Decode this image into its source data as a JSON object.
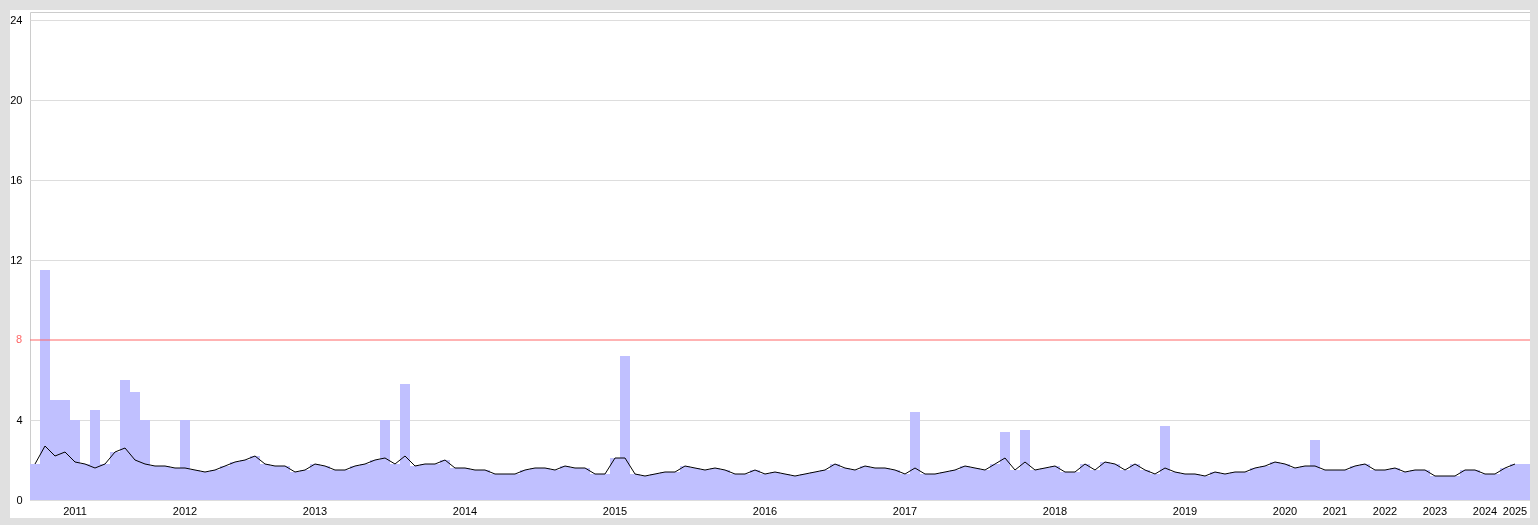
{
  "chart_data": {
    "type": "bar",
    "categories": [
      null,
      null,
      null,
      null,
      "2011",
      null,
      null,
      null,
      null,
      null,
      null,
      null,
      null,
      null,
      null,
      "2012",
      null,
      null,
      null,
      null,
      null,
      null,
      null,
      null,
      null,
      null,
      null,
      null,
      "2013",
      null,
      null,
      null,
      null,
      null,
      null,
      null,
      null,
      null,
      null,
      null,
      null,
      null,
      null,
      "2014",
      null,
      null,
      null,
      null,
      null,
      null,
      null,
      null,
      null,
      null,
      null,
      null,
      null,
      null,
      "2015",
      null,
      null,
      null,
      null,
      null,
      null,
      null,
      null,
      null,
      null,
      null,
      null,
      null,
      null,
      "2016",
      null,
      null,
      null,
      null,
      null,
      null,
      null,
      null,
      null,
      null,
      null,
      null,
      null,
      "2017",
      null,
      null,
      null,
      null,
      null,
      null,
      null,
      null,
      null,
      null,
      null,
      null,
      null,
      null,
      "2018",
      null,
      null,
      null,
      null,
      null,
      null,
      null,
      null,
      null,
      null,
      null,
      null,
      "2019",
      null,
      null,
      null,
      null,
      null,
      null,
      null,
      null,
      null,
      "2020",
      null,
      null,
      null,
      null,
      "2021",
      null,
      null,
      null,
      null,
      "2022",
      null,
      null,
      null,
      null,
      "2023",
      null,
      null,
      null,
      null,
      "2024",
      null,
      null,
      "2025",
      null
    ],
    "series": [
      {
        "color": "#c0c0ff",
        "values": [
          1.8,
          11.5,
          5.0,
          5.0,
          4.0,
          1.8,
          4.5,
          1.8,
          2.4,
          6.0,
          5.4,
          4.0,
          1.7,
          1.7,
          1.6,
          4.0,
          1.5,
          1.4,
          1.5,
          1.7,
          1.9,
          2.0,
          2.2,
          1.8,
          1.7,
          1.7,
          1.4,
          1.5,
          1.8,
          1.7,
          1.5,
          1.5,
          1.7,
          1.8,
          2.0,
          4.0,
          1.8,
          5.8,
          1.7,
          1.8,
          1.8,
          2.0,
          1.6,
          1.6,
          1.5,
          1.5,
          1.3,
          1.3,
          1.3,
          1.5,
          1.6,
          1.6,
          1.5,
          1.7,
          1.6,
          1.6,
          1.3,
          1.3,
          2.1,
          7.2,
          1.3,
          1.2,
          1.3,
          1.4,
          1.4,
          1.7,
          1.6,
          1.5,
          1.6,
          1.5,
          1.3,
          1.3,
          1.5,
          1.3,
          1.4,
          1.3,
          1.2,
          1.3,
          1.4,
          1.5,
          1.8,
          1.6,
          1.5,
          1.7,
          1.6,
          1.6,
          1.5,
          1.3,
          4.4,
          1.3,
          1.3,
          1.4,
          1.5,
          1.7,
          1.6,
          1.5,
          1.8,
          3.4,
          1.5,
          3.5,
          1.5,
          1.6,
          1.7,
          1.4,
          1.4,
          1.8,
          1.5,
          1.9,
          1.8,
          1.5,
          1.8,
          1.5,
          1.3,
          3.7,
          1.4,
          1.3,
          1.3,
          1.2,
          1.4,
          1.3,
          1.4,
          1.4,
          1.6,
          1.7,
          1.9,
          1.8,
          1.6,
          1.7,
          3.0,
          1.5,
          1.5,
          1.5,
          1.7,
          1.8,
          1.5,
          1.5,
          1.6,
          1.4,
          1.5,
          1.5,
          1.2,
          1.2,
          1.2,
          1.5,
          1.5,
          1.3,
          1.3,
          1.6,
          1.8,
          1.8
        ]
      },
      {
        "type": "line",
        "color": "#000000",
        "values": [
          1.8,
          2.7,
          2.2,
          2.4,
          1.9,
          1.8,
          1.6,
          1.8,
          2.4,
          2.6,
          2.0,
          1.8,
          1.7,
          1.7,
          1.6,
          1.6,
          1.5,
          1.4,
          1.5,
          1.7,
          1.9,
          2.0,
          2.2,
          1.8,
          1.7,
          1.7,
          1.4,
          1.5,
          1.8,
          1.7,
          1.5,
          1.5,
          1.7,
          1.8,
          2.0,
          2.1,
          1.8,
          2.2,
          1.7,
          1.8,
          1.8,
          2.0,
          1.6,
          1.6,
          1.5,
          1.5,
          1.3,
          1.3,
          1.3,
          1.5,
          1.6,
          1.6,
          1.5,
          1.7,
          1.6,
          1.6,
          1.3,
          1.3,
          2.1,
          2.1,
          1.3,
          1.2,
          1.3,
          1.4,
          1.4,
          1.7,
          1.6,
          1.5,
          1.6,
          1.5,
          1.3,
          1.3,
          1.5,
          1.3,
          1.4,
          1.3,
          1.2,
          1.3,
          1.4,
          1.5,
          1.8,
          1.6,
          1.5,
          1.7,
          1.6,
          1.6,
          1.5,
          1.3,
          1.6,
          1.3,
          1.3,
          1.4,
          1.5,
          1.7,
          1.6,
          1.5,
          1.8,
          2.1,
          1.5,
          1.9,
          1.5,
          1.6,
          1.7,
          1.4,
          1.4,
          1.8,
          1.5,
          1.9,
          1.8,
          1.5,
          1.8,
          1.5,
          1.3,
          1.6,
          1.4,
          1.3,
          1.3,
          1.2,
          1.4,
          1.3,
          1.4,
          1.4,
          1.6,
          1.7,
          1.9,
          1.8,
          1.6,
          1.7,
          1.7,
          1.5,
          1.5,
          1.5,
          1.7,
          1.8,
          1.5,
          1.5,
          1.6,
          1.4,
          1.5,
          1.5,
          1.2,
          1.2,
          1.2,
          1.5,
          1.5,
          1.3,
          1.3,
          1.6,
          1.8,
          null
        ]
      }
    ],
    "ylim": [
      0,
      24.4
    ],
    "yticks": [
      0,
      4,
      12,
      16,
      20,
      24
    ],
    "ref_lines": [
      {
        "axis": "y",
        "value": 8,
        "label": "8",
        "color": "#ff6666"
      }
    ],
    "grid": "y",
    "marker": "none"
  }
}
